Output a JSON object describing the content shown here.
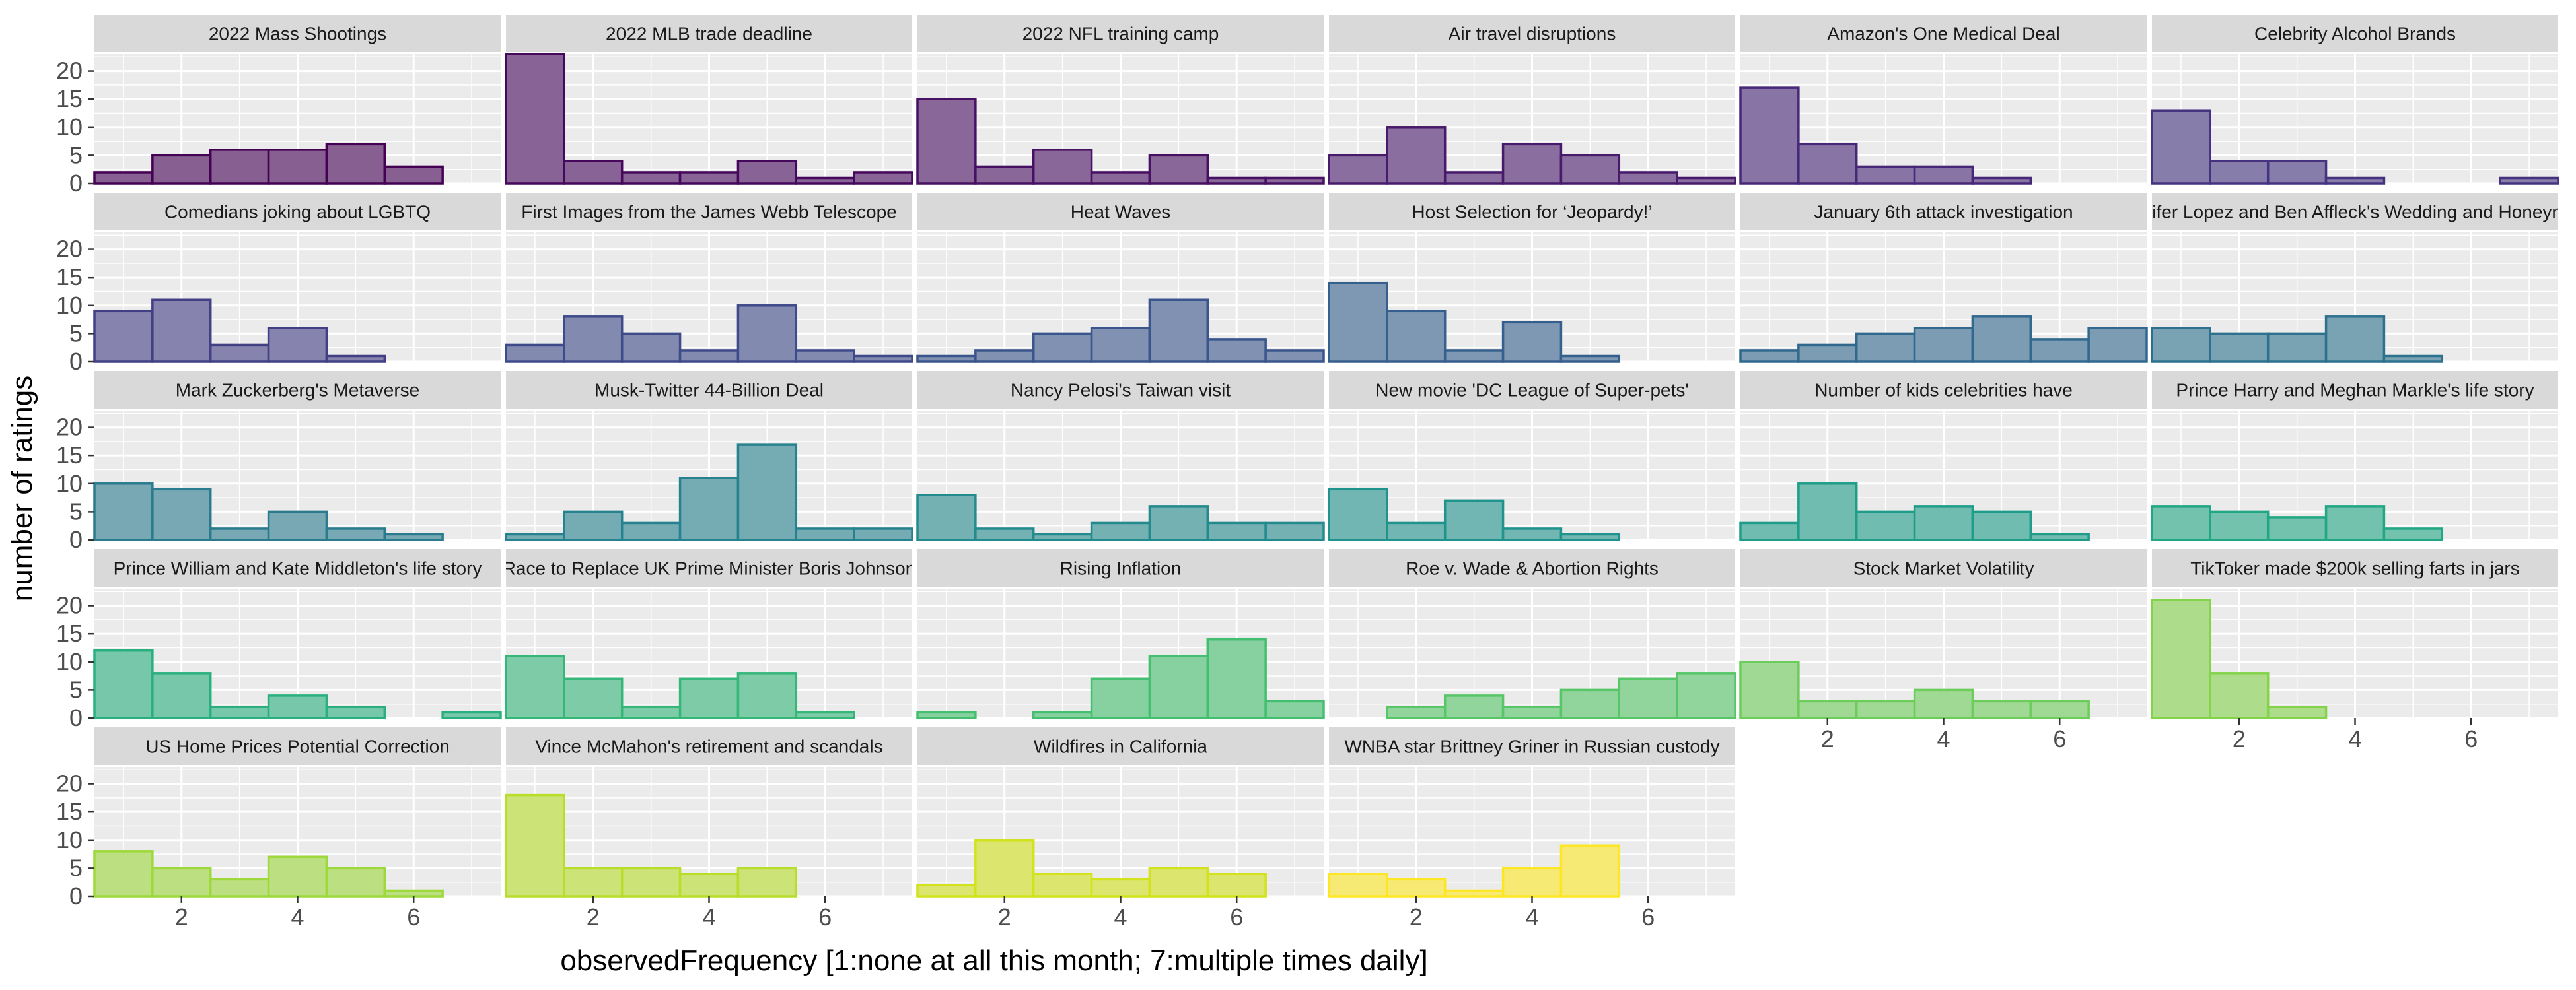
{
  "chart_data": {
    "type": "bar",
    "chart_kind": "faceted-histogram",
    "xlabel": "observedFrequency [1:none at all this month; 7:multiple times daily]",
    "ylabel": "number of ratings",
    "xlim": [
      0.5,
      7.5
    ],
    "ylim": [
      0,
      23
    ],
    "x_ticks": [
      2,
      4,
      6
    ],
    "y_ticks": [
      0,
      5,
      10,
      15,
      20
    ],
    "bins": [
      1,
      2,
      3,
      4,
      5,
      6,
      7
    ],
    "grid": true,
    "panel_background": "#ebebeb",
    "strip_background": "#d9d9d9",
    "gridline_color": "#ffffff",
    "palette": "viridis",
    "panels": [
      {
        "title": "2022 Mass Shootings",
        "values": [
          2,
          5,
          6,
          6,
          7,
          3,
          0
        ],
        "color": "#440154"
      },
      {
        "title": "2022 MLB trade deadline",
        "values": [
          23,
          4,
          2,
          2,
          4,
          1,
          2
        ],
        "color": "#46085c"
      },
      {
        "title": "2022 NFL training camp",
        "values": [
          15,
          3,
          6,
          2,
          5,
          1,
          1
        ],
        "color": "#471063"
      },
      {
        "title": "Air travel disruptions",
        "values": [
          5,
          10,
          2,
          7,
          5,
          2,
          1
        ],
        "color": "#481a6c"
      },
      {
        "title": "Amazon's One Medical Deal",
        "values": [
          17,
          7,
          3,
          3,
          1,
          0,
          0
        ],
        "color": "#472777"
      },
      {
        "title": "Celebrity Alcohol Brands",
        "values": [
          13,
          4,
          4,
          1,
          0,
          0,
          1
        ],
        "color": "#45337f"
      },
      {
        "title": "Comedians joking about LGBTQ",
        "values": [
          9,
          11,
          3,
          6,
          1,
          0,
          0
        ],
        "color": "#423f85"
      },
      {
        "title": "First Images from the James Webb Telescope",
        "values": [
          3,
          8,
          5,
          2,
          10,
          2,
          1
        ],
        "color": "#3e4a89"
      },
      {
        "title": "Heat Waves",
        "values": [
          1,
          2,
          5,
          6,
          11,
          4,
          2
        ],
        "color": "#39558c"
      },
      {
        "title": "Host Selection for ‘Jeopardy!’",
        "values": [
          14,
          9,
          2,
          7,
          1,
          0,
          0
        ],
        "color": "#355f8d"
      },
      {
        "title": "January 6th attack investigation",
        "values": [
          2,
          3,
          5,
          6,
          8,
          4,
          6
        ],
        "color": "#31688e"
      },
      {
        "title": "Jennifer Lopez and Ben Affleck's Wedding and Honeymoon",
        "values": [
          6,
          5,
          5,
          8,
          1,
          0,
          0
        ],
        "color": "#2d718e"
      },
      {
        "title": "Mark Zuckerberg's Metaverse",
        "values": [
          10,
          9,
          2,
          5,
          2,
          1,
          0
        ],
        "color": "#2a7b8e"
      },
      {
        "title": "Musk-Twitter 44-Billion Deal",
        "values": [
          1,
          5,
          3,
          11,
          17,
          2,
          2
        ],
        "color": "#26828e"
      },
      {
        "title": "Nancy Pelosi's Taiwan visit",
        "values": [
          8,
          2,
          1,
          3,
          6,
          3,
          3
        ],
        "color": "#238b8d"
      },
      {
        "title": "New movie 'DC League of Super-pets'",
        "values": [
          9,
          3,
          7,
          2,
          1,
          0,
          0
        ],
        "color": "#20938c"
      },
      {
        "title": "Number of kids celebrities have",
        "values": [
          3,
          10,
          5,
          6,
          5,
          1,
          0
        ],
        "color": "#1f9d89"
      },
      {
        "title": "Prince Harry and Meghan Markle's life story",
        "values": [
          6,
          5,
          4,
          6,
          2,
          0,
          0
        ],
        "color": "#22a785"
      },
      {
        "title": "Prince William and Kate Middleton's life story",
        "values": [
          12,
          8,
          2,
          4,
          2,
          0,
          1
        ],
        "color": "#2ab07f"
      },
      {
        "title": "Race to Replace UK Prime Minister Boris Johnson",
        "values": [
          11,
          7,
          2,
          7,
          8,
          1,
          0
        ],
        "color": "#35b779"
      },
      {
        "title": "Rising Inflation",
        "values": [
          1,
          0,
          1,
          7,
          11,
          14,
          3
        ],
        "color": "#44bf70"
      },
      {
        "title": "Roe v. Wade & Abortion Rights",
        "values": [
          0,
          2,
          4,
          2,
          5,
          7,
          8
        ],
        "color": "#56c667"
      },
      {
        "title": "Stock Market Volatility",
        "values": [
          10,
          3,
          3,
          5,
          3,
          3,
          0
        ],
        "color": "#6ccd5a"
      },
      {
        "title": "TikToker made $200k selling farts in jars",
        "values": [
          21,
          8,
          2,
          0,
          0,
          0,
          0
        ],
        "color": "#84d44b"
      },
      {
        "title": "US Home Prices Potential Correction",
        "values": [
          8,
          5,
          3,
          7,
          5,
          1,
          0
        ],
        "color": "#9dd93b"
      },
      {
        "title": "Vince McMahon's retirement and scandals",
        "values": [
          18,
          5,
          5,
          4,
          5,
          0,
          0
        ],
        "color": "#b8de29"
      },
      {
        "title": "Wildfires in California",
        "values": [
          2,
          10,
          4,
          3,
          5,
          4,
          0
        ],
        "color": "#d2e21b"
      },
      {
        "title": "WNBA star Brittney Griner in Russian custody",
        "values": [
          4,
          3,
          1,
          5,
          9,
          0,
          0
        ],
        "color": "#fde725"
      }
    ]
  }
}
